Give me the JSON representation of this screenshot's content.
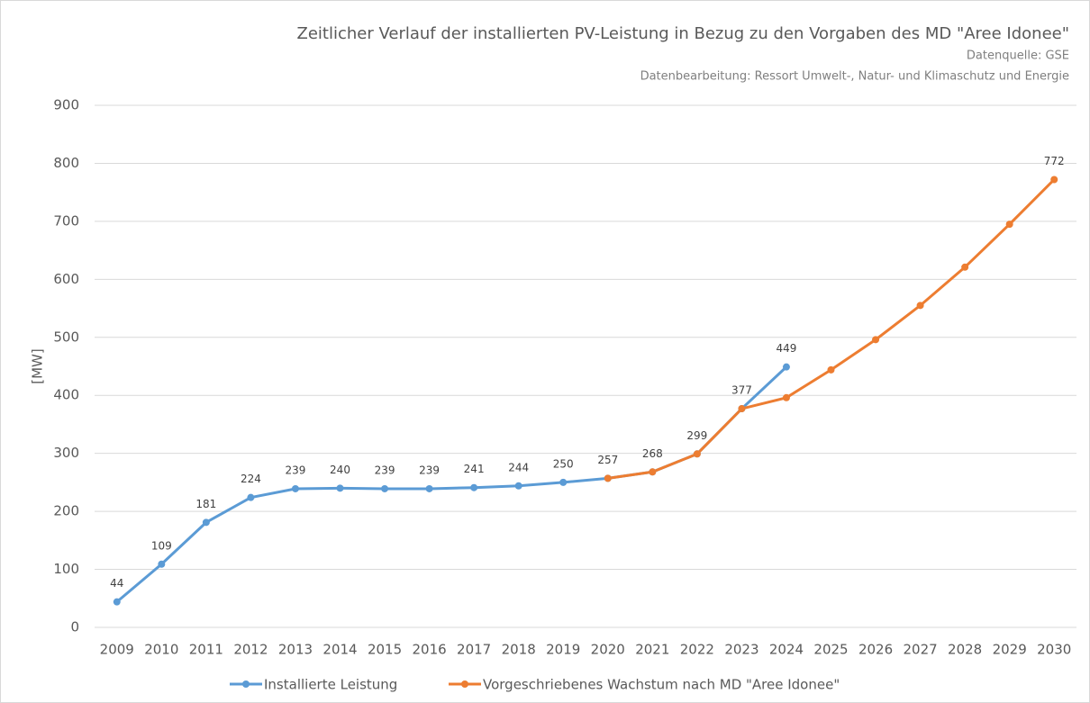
{
  "chart_data": {
    "type": "line",
    "title": "Zeitlicher Verlauf der installierten PV-Leistung in Bezug zu den Vorgaben des MD \"Aree Idonee\"",
    "subtitles": [
      "Datenquelle: GSE",
      "Datenbearbeitung: Ressort Umwelt-, Natur- und Klimaschutz und Energie"
    ],
    "ylabel": "[MW]",
    "categories": [
      "2009",
      "2010",
      "2011",
      "2012",
      "2013",
      "2014",
      "2015",
      "2016",
      "2017",
      "2018",
      "2019",
      "2020",
      "2021",
      "2022",
      "2023",
      "2024",
      "2025",
      "2026",
      "2027",
      "2028",
      "2029",
      "2030"
    ],
    "series": [
      {
        "name": "Installierte Leistung",
        "color": "#5b9bd5",
        "data_labels": true,
        "values": [
          44,
          109,
          181,
          224,
          239,
          240,
          239,
          239,
          241,
          244,
          250,
          257,
          268,
          299,
          377,
          449,
          null,
          null,
          null,
          null,
          null,
          null
        ]
      },
      {
        "name": "Vorgeschriebenes Wachstum nach MD \"Aree Idonee\"",
        "color": "#ed7d31",
        "data_labels": false,
        "values": [
          null,
          null,
          null,
          null,
          null,
          null,
          null,
          null,
          null,
          null,
          null,
          257,
          268,
          299,
          377,
          396,
          444,
          496,
          555,
          621,
          695,
          772
        ],
        "value_labels": [
          null,
          null,
          null,
          null,
          null,
          null,
          null,
          null,
          null,
          null,
          null,
          null,
          null,
          null,
          null,
          null,
          null,
          null,
          null,
          null,
          null,
          "772"
        ]
      }
    ],
    "ylim": [
      0,
      900
    ],
    "yticks": [
      0,
      100,
      200,
      300,
      400,
      500,
      600,
      700,
      800,
      900
    ],
    "grid": true,
    "legend": "bottom"
  }
}
